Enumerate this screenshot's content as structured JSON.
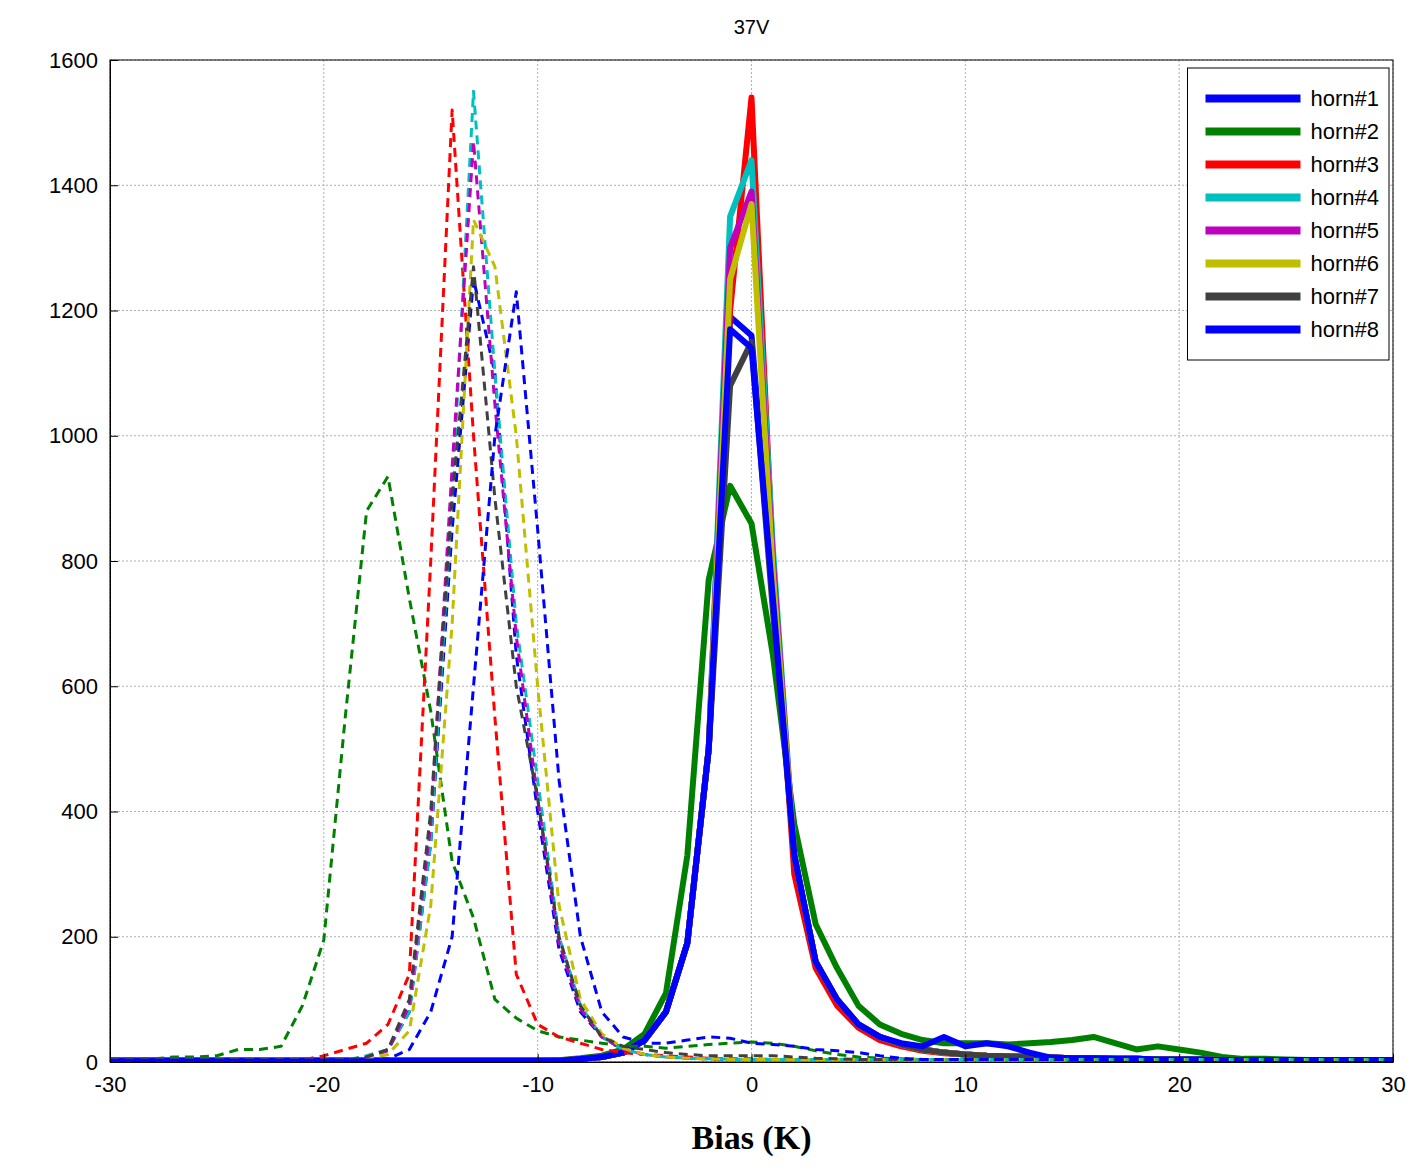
{
  "chart_data": {
    "type": "line",
    "title": "37V",
    "x_label": "Bias (K)",
    "x": [
      -30,
      -29,
      -28,
      -27,
      -26,
      -25,
      -24,
      -23,
      -22,
      -21,
      -20,
      -19,
      -18,
      -17,
      -16,
      -15,
      -14,
      -13,
      -12,
      -11,
      -10,
      -9,
      -8,
      -7,
      -6,
      -5,
      -4,
      -3,
      -2,
      -1,
      0,
      1,
      2,
      3,
      4,
      5,
      6,
      7,
      8,
      9,
      10,
      11,
      12,
      13,
      14,
      15,
      16,
      17,
      18,
      19,
      20,
      21,
      22,
      23,
      24,
      25,
      26,
      27,
      28,
      29,
      30
    ],
    "xlim": [
      -30,
      30
    ],
    "ylim": [
      0,
      1600
    ],
    "xticks": [
      -30,
      -20,
      -10,
      0,
      10,
      20,
      30
    ],
    "yticks": [
      0,
      200,
      400,
      600,
      800,
      1000,
      1200,
      1400,
      1600
    ],
    "grid": true,
    "legend": "upper right",
    "series": [
      {
        "name": "horn#1",
        "color": "#0000ff",
        "line_style": "solid",
        "values": [
          2,
          2,
          2,
          2,
          2,
          2,
          2,
          2,
          2,
          2,
          2,
          2,
          2,
          2,
          2,
          2,
          2,
          2,
          2,
          2,
          2,
          2,
          5,
          8,
          15,
          35,
          80,
          190,
          500,
          1190,
          1160,
          750,
          330,
          160,
          100,
          60,
          40,
          28,
          20,
          15,
          12,
          10,
          9,
          8,
          7,
          6,
          6,
          5,
          5,
          4,
          4,
          4,
          3,
          3,
          3,
          3,
          3,
          3,
          3,
          3,
          3
        ]
      },
      {
        "name": "horn#2",
        "color": "#008000",
        "line_style": "solid",
        "values": [
          2,
          2,
          2,
          2,
          2,
          2,
          2,
          2,
          2,
          2,
          2,
          2,
          2,
          2,
          2,
          2,
          2,
          2,
          2,
          2,
          2,
          3,
          6,
          10,
          20,
          45,
          110,
          330,
          770,
          920,
          860,
          650,
          380,
          220,
          150,
          90,
          60,
          45,
          35,
          30,
          30,
          30,
          28,
          30,
          32,
          35,
          40,
          30,
          20,
          25,
          20,
          15,
          8,
          5,
          5,
          4,
          3,
          3,
          3,
          3,
          3
        ]
      },
      {
        "name": "horn#3",
        "color": "#ff0000",
        "line_style": "solid",
        "values": [
          2,
          2,
          2,
          2,
          2,
          2,
          2,
          2,
          2,
          2,
          2,
          2,
          2,
          2,
          2,
          2,
          2,
          2,
          2,
          2,
          2,
          2,
          5,
          8,
          15,
          35,
          80,
          190,
          500,
          1200,
          1540,
          800,
          300,
          150,
          90,
          55,
          35,
          25,
          18,
          14,
          12,
          10,
          9,
          8,
          7,
          6,
          6,
          5,
          5,
          4,
          4,
          4,
          3,
          3,
          3,
          3,
          3,
          3,
          3,
          3,
          3
        ]
      },
      {
        "name": "horn#4",
        "color": "#00bfbf",
        "line_style": "solid",
        "values": [
          2,
          2,
          2,
          2,
          2,
          2,
          2,
          2,
          2,
          2,
          2,
          2,
          2,
          2,
          2,
          2,
          2,
          2,
          2,
          2,
          2,
          2,
          5,
          8,
          15,
          35,
          80,
          190,
          500,
          1350,
          1440,
          820,
          330,
          160,
          100,
          60,
          40,
          28,
          20,
          15,
          12,
          10,
          9,
          8,
          7,
          6,
          6,
          5,
          5,
          4,
          4,
          4,
          3,
          3,
          3,
          3,
          3,
          3,
          3,
          3,
          3
        ]
      },
      {
        "name": "horn#5",
        "color": "#bf00bf",
        "line_style": "solid",
        "values": [
          2,
          2,
          2,
          2,
          2,
          2,
          2,
          2,
          2,
          2,
          2,
          2,
          2,
          2,
          2,
          2,
          2,
          2,
          2,
          2,
          2,
          2,
          5,
          8,
          15,
          35,
          80,
          190,
          500,
          1300,
          1390,
          800,
          330,
          160,
          100,
          60,
          40,
          28,
          20,
          15,
          12,
          10,
          9,
          8,
          7,
          6,
          6,
          5,
          5,
          4,
          4,
          4,
          3,
          3,
          3,
          3,
          3,
          3,
          3,
          3,
          3
        ]
      },
      {
        "name": "horn#6",
        "color": "#bfbf00",
        "line_style": "solid",
        "values": [
          2,
          2,
          2,
          2,
          2,
          2,
          2,
          2,
          2,
          2,
          2,
          2,
          2,
          2,
          2,
          2,
          2,
          2,
          2,
          2,
          2,
          2,
          5,
          8,
          15,
          35,
          80,
          190,
          500,
          1250,
          1370,
          780,
          330,
          160,
          100,
          60,
          40,
          28,
          20,
          15,
          12,
          10,
          9,
          8,
          7,
          6,
          6,
          5,
          5,
          4,
          4,
          4,
          3,
          3,
          3,
          3,
          3,
          3,
          3,
          3,
          3
        ]
      },
      {
        "name": "horn#7",
        "color": "#404040",
        "line_style": "solid",
        "values": [
          2,
          2,
          2,
          2,
          2,
          2,
          2,
          2,
          2,
          2,
          2,
          2,
          2,
          2,
          2,
          2,
          2,
          2,
          2,
          2,
          2,
          2,
          5,
          8,
          15,
          35,
          80,
          190,
          500,
          1080,
          1150,
          720,
          330,
          160,
          100,
          60,
          40,
          28,
          20,
          15,
          12,
          10,
          9,
          8,
          7,
          6,
          6,
          5,
          5,
          4,
          4,
          4,
          3,
          3,
          3,
          3,
          3,
          3,
          3,
          3,
          3
        ]
      },
      {
        "name": "horn#8",
        "color": "#0000ff",
        "line_style": "solid",
        "values": [
          2,
          2,
          2,
          2,
          2,
          2,
          2,
          2,
          2,
          2,
          2,
          2,
          2,
          2,
          2,
          2,
          2,
          2,
          2,
          2,
          2,
          2,
          5,
          8,
          15,
          35,
          80,
          190,
          500,
          1170,
          1140,
          740,
          330,
          160,
          100,
          60,
          40,
          30,
          25,
          40,
          25,
          30,
          25,
          15,
          7,
          6,
          6,
          5,
          5,
          4,
          4,
          4,
          3,
          3,
          3,
          3,
          3,
          3,
          3,
          3,
          3
        ]
      },
      {
        "color": "#0000ff",
        "line_style": "dashed",
        "values": [
          3,
          3,
          3,
          3,
          3,
          3,
          3,
          3,
          3,
          3,
          3,
          3,
          8,
          20,
          80,
          350,
          850,
          1250,
          1100,
          650,
          400,
          180,
          80,
          40,
          20,
          12,
          8,
          6,
          5,
          4,
          4,
          4,
          4,
          4,
          4,
          4,
          4,
          4,
          4,
          4,
          4,
          4,
          4,
          4,
          4,
          4,
          4,
          4,
          4,
          4,
          4,
          4,
          4,
          4,
          4,
          4,
          4,
          4,
          4,
          4,
          4
        ]
      },
      {
        "color": "#008000",
        "line_style": "dashed",
        "values": [
          5,
          5,
          5,
          8,
          8,
          10,
          20,
          20,
          25,
          90,
          195,
          550,
          880,
          935,
          740,
          560,
          320,
          230,
          100,
          70,
          50,
          40,
          35,
          30,
          25,
          25,
          22,
          25,
          28,
          30,
          32,
          30,
          25,
          18,
          12,
          8,
          6,
          5,
          4,
          4,
          4,
          4,
          4,
          4,
          4,
          4,
          4,
          4,
          4,
          4,
          4,
          4,
          4,
          4,
          4,
          4,
          4,
          4,
          4,
          4,
          4
        ]
      },
      {
        "color": "#ff0000",
        "line_style": "dashed",
        "values": [
          3,
          3,
          3,
          3,
          3,
          3,
          3,
          3,
          3,
          3,
          10,
          20,
          30,
          60,
          140,
          800,
          1520,
          1000,
          550,
          140,
          60,
          40,
          30,
          20,
          15,
          12,
          10,
          8,
          6,
          5,
          5,
          4,
          4,
          4,
          4,
          4,
          4,
          4,
          4,
          4,
          4,
          4,
          4,
          4,
          4,
          4,
          4,
          4,
          4,
          4,
          4,
          4,
          4,
          4,
          4,
          4,
          4,
          4,
          4,
          4,
          4
        ]
      },
      {
        "color": "#00bfbf",
        "line_style": "dashed",
        "values": [
          3,
          3,
          3,
          3,
          3,
          3,
          3,
          3,
          3,
          3,
          3,
          3,
          10,
          20,
          80,
          350,
          900,
          1550,
          1100,
          700,
          450,
          200,
          90,
          40,
          20,
          12,
          8,
          6,
          5,
          4,
          4,
          4,
          4,
          4,
          4,
          4,
          4,
          4,
          4,
          4,
          4,
          4,
          4,
          4,
          4,
          4,
          4,
          4,
          4,
          4,
          4,
          4,
          4,
          4,
          4,
          4,
          4,
          4,
          4,
          4,
          4
        ]
      },
      {
        "color": "#bf00bf",
        "line_style": "dashed",
        "values": [
          3,
          3,
          3,
          3,
          3,
          3,
          3,
          3,
          3,
          3,
          3,
          3,
          8,
          18,
          90,
          380,
          950,
          1470,
          1050,
          680,
          420,
          190,
          85,
          40,
          20,
          12,
          8,
          6,
          5,
          4,
          4,
          4,
          4,
          4,
          4,
          4,
          4,
          4,
          4,
          4,
          4,
          4,
          4,
          4,
          4,
          4,
          4,
          4,
          4,
          4,
          4,
          4,
          4,
          4,
          4,
          4,
          4,
          4,
          4,
          4,
          4
        ]
      },
      {
        "color": "#bfbf00",
        "line_style": "dashed",
        "values": [
          3,
          3,
          3,
          3,
          3,
          3,
          3,
          3,
          3,
          3,
          3,
          3,
          5,
          12,
          50,
          250,
          700,
          1345,
          1270,
          1000,
          600,
          250,
          100,
          45,
          22,
          12,
          8,
          6,
          5,
          4,
          4,
          4,
          4,
          4,
          4,
          4,
          4,
          4,
          4,
          4,
          4,
          4,
          4,
          4,
          4,
          4,
          4,
          4,
          4,
          4,
          4,
          4,
          4,
          4,
          4,
          4,
          4,
          4,
          4,
          4,
          4
        ]
      },
      {
        "color": "#404040",
        "line_style": "dashed",
        "values": [
          3,
          3,
          3,
          3,
          3,
          3,
          3,
          3,
          3,
          3,
          3,
          3,
          8,
          20,
          100,
          400,
          900,
          1270,
          900,
          600,
          420,
          200,
          90,
          40,
          25,
          20,
          15,
          12,
          10,
          10,
          10,
          10,
          8,
          6,
          5,
          4,
          4,
          4,
          4,
          4,
          4,
          4,
          4,
          4,
          4,
          4,
          4,
          4,
          4,
          4,
          4,
          4,
          4,
          4,
          4,
          4,
          4,
          4,
          4,
          4,
          4
        ]
      },
      {
        "color": "#0000ff",
        "line_style": "dashed",
        "values": [
          3,
          3,
          3,
          3,
          3,
          3,
          3,
          3,
          3,
          3,
          3,
          3,
          3,
          5,
          20,
          80,
          200,
          600,
          1000,
          1230,
          850,
          450,
          200,
          80,
          40,
          30,
          30,
          35,
          40,
          38,
          30,
          28,
          25,
          20,
          18,
          15,
          10,
          6,
          4,
          4,
          4,
          4,
          4,
          4,
          4,
          4,
          4,
          4,
          4,
          4,
          4,
          4,
          4,
          4,
          4,
          4,
          4,
          4,
          4,
          4,
          4
        ]
      }
    ]
  }
}
